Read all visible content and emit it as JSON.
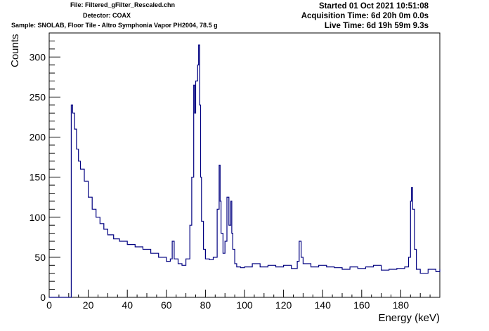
{
  "header": {
    "file": "File: Filtered_gFilter_Rescaled.chn",
    "detector": "Detector: COAX",
    "sample": "Sample: SNOLAB, Floor Tile - Altro Symphonia Vapor PH2004, 78.5 g",
    "started": "Started 01 Oct 2021 10:51:08",
    "acquisition": "Acquisition Time: 6d 20h 0m 0.0s",
    "live": "Live Time: 6d 19h 59m 9.3s"
  },
  "chart_data": {
    "type": "line",
    "title": "",
    "xlabel": "Energy (keV)",
    "ylabel": "Counts",
    "xlim": [
      0,
      200
    ],
    "ylim": [
      0,
      330
    ],
    "xticks": [
      "0",
      "20",
      "40",
      "60",
      "80",
      "100",
      "120",
      "140",
      "160",
      "180"
    ],
    "yticks": [
      "0",
      "50",
      "100",
      "150",
      "200",
      "250",
      "300"
    ],
    "grid": false,
    "line_color": "#000080",
    "series": [
      {
        "x": [
          0,
          11.2,
          11.3,
          12,
          13,
          14,
          15,
          16,
          18,
          20,
          22,
          24,
          26,
          28,
          30,
          33,
          36,
          40,
          44,
          48,
          52,
          56,
          60,
          62,
          63,
          64,
          66,
          68,
          70,
          72,
          73,
          74,
          74.5,
          75,
          76,
          76.5,
          77,
          77.5,
          78,
          79,
          80,
          82,
          84,
          86,
          87,
          87.5,
          88,
          89,
          90,
          91,
          92,
          93,
          93.5,
          94,
          95,
          96,
          98,
          100,
          104,
          108,
          112,
          116,
          120,
          124,
          127,
          128,
          129,
          130,
          134,
          138,
          142,
          146,
          150,
          154,
          158,
          162,
          166,
          170,
          174,
          178,
          182,
          184,
          185,
          185.5,
          186,
          187,
          188,
          190,
          194,
          198,
          200
        ],
        "values": [
          0,
          0,
          240,
          230,
          210,
          185,
          170,
          160,
          145,
          125,
          110,
          100,
          92,
          85,
          78,
          73,
          70,
          66,
          63,
          60,
          55,
          50,
          45,
          48,
          70,
          48,
          42,
          40,
          48,
          90,
          150,
          265,
          230,
          270,
          290,
          315,
          240,
          150,
          95,
          60,
          48,
          47,
          50,
          110,
          165,
          120,
          80,
          55,
          70,
          125,
          90,
          120,
          80,
          60,
          42,
          38,
          37,
          38,
          42,
          38,
          40,
          38,
          40,
          36,
          45,
          70,
          50,
          42,
          38,
          40,
          38,
          37,
          35,
          38,
          36,
          38,
          40,
          34,
          35,
          36,
          38,
          50,
          120,
          137,
          110,
          60,
          35,
          30,
          35,
          32,
          35
        ]
      }
    ]
  }
}
